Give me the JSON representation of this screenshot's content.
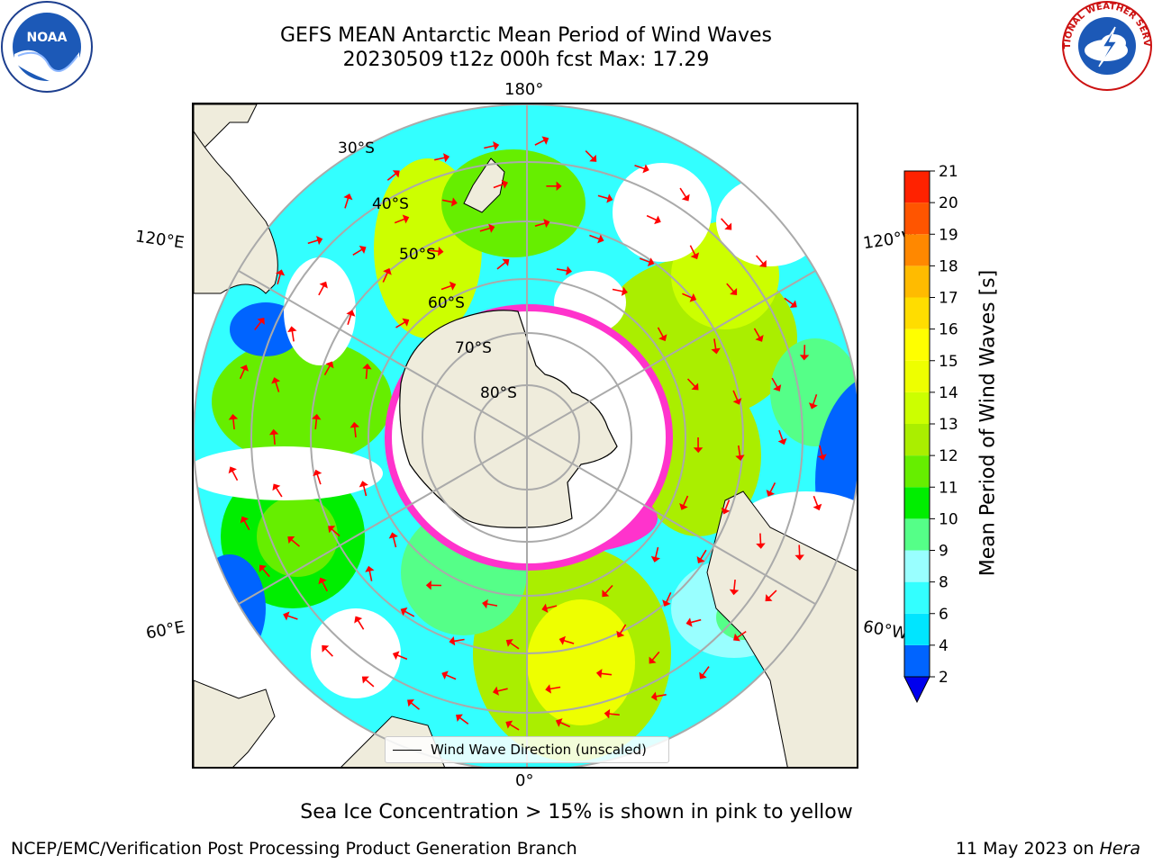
{
  "title": {
    "line1": "GEFS MEAN Antarctic Mean Period of Wind Waves",
    "line2": "20230509 t12z 000h fcst   Max: 17.29"
  },
  "logos": {
    "left": {
      "text": "NOAA",
      "icon": "noaa-logo"
    },
    "right": {
      "text": "NATIONAL WEATHER SERVICE",
      "icon": "nws-logo"
    }
  },
  "map": {
    "projection": "south-polar-stereographic",
    "lon_labels": {
      "top": "180°",
      "bottom": "0°",
      "left_upper": "120°E",
      "left_lower": "60°E",
      "right_upper": "120°W",
      "right_lower": "60°W"
    },
    "lat_labels": [
      "30°S",
      "40°S",
      "50°S",
      "60°S",
      "70°S",
      "80°S"
    ],
    "legend": "Wind Wave Direction (unscaled)",
    "land_color": "#efecdc",
    "arrow_color": "#ff0000",
    "ice_colors": [
      "#ff33cc",
      "#ffcc00"
    ]
  },
  "colorbar": {
    "label": "Mean Period of Wind Waves [s]",
    "ticks": [
      "2",
      "4",
      "6",
      "8",
      "9",
      "10",
      "11",
      "12",
      "13",
      "14",
      "15",
      "16",
      "17",
      "18",
      "19",
      "20",
      "21"
    ],
    "colors": [
      "#0064ff",
      "#00e5ff",
      "#33ffff",
      "#99ffff",
      "#55ff88",
      "#00ee00",
      "#66ee00",
      "#aaee00",
      "#ccff00",
      "#eeff00",
      "#ffff00",
      "#ffdd00",
      "#ffbb00",
      "#ff8800",
      "#ff5500",
      "#ff2200"
    ],
    "under_color": "#0000ee"
  },
  "notes": {
    "sea_ice": "Sea Ice Concentration > 15% is shown in pink to yellow",
    "producer": "NCEP/EMC/Verification Post Processing Product Generation Branch",
    "date": "11 May 2023 on ",
    "machine": "Hera"
  }
}
